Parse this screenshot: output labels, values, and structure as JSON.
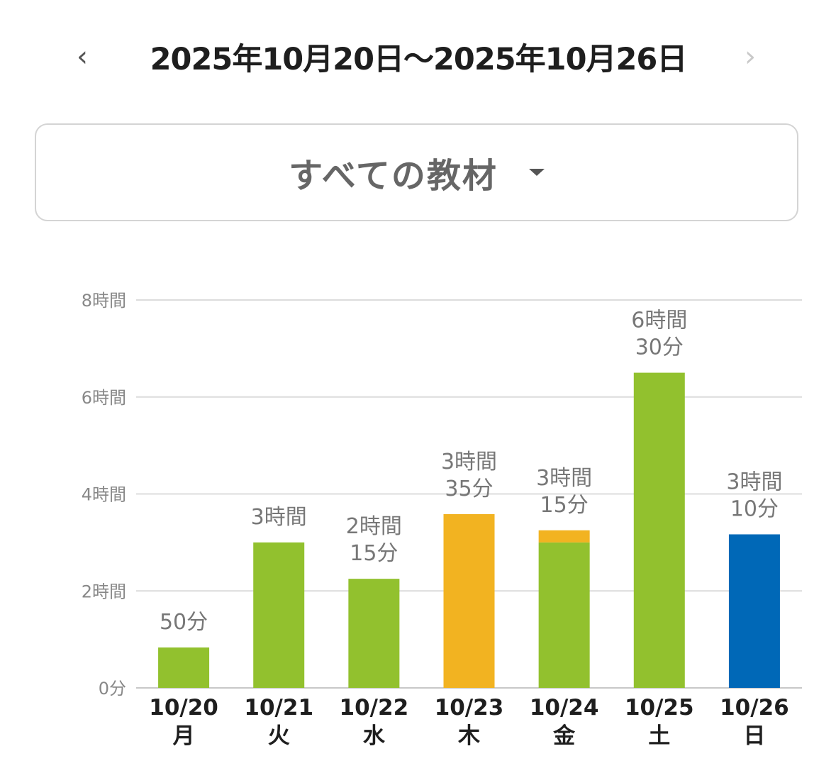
{
  "header": {
    "prev_icon": "‹",
    "next_icon": "›",
    "range": "2025年10月20日〜2025年10月26日"
  },
  "filter": {
    "selected": "すべての教材"
  },
  "chart_data": {
    "type": "bar",
    "stacked": true,
    "unit": "hours",
    "ylim": [
      0,
      8
    ],
    "grid": true,
    "y_ticks": [
      {
        "value": 0,
        "label": "0分"
      },
      {
        "value": 2,
        "label": "2時間"
      },
      {
        "value": 4,
        "label": "4時間"
      },
      {
        "value": 6,
        "label": "6時間"
      },
      {
        "value": 8,
        "label": "8時間"
      }
    ],
    "categories": [
      {
        "date": "10/20",
        "weekday": "月"
      },
      {
        "date": "10/21",
        "weekday": "火"
      },
      {
        "date": "10/22",
        "weekday": "水"
      },
      {
        "date": "10/23",
        "weekday": "木"
      },
      {
        "date": "10/24",
        "weekday": "金"
      },
      {
        "date": "10/25",
        "weekday": "土"
      },
      {
        "date": "10/26",
        "weekday": "日"
      }
    ],
    "series": [
      {
        "color": "#92c12e",
        "values": [
          0.8333,
          3,
          2.25,
          0,
          3,
          6.5,
          0
        ]
      },
      {
        "color": "#f2b321",
        "values": [
          0,
          0,
          0,
          3.5833,
          0.25,
          0,
          0
        ]
      },
      {
        "color": "#0068b7",
        "values": [
          0,
          0,
          0,
          0,
          0,
          0,
          3.1667
        ]
      }
    ],
    "totals": [
      [
        "50分"
      ],
      [
        "3時間"
      ],
      [
        "2時間",
        "15分"
      ],
      [
        "3時間",
        "35分"
      ],
      [
        "3時間",
        "15分"
      ],
      [
        "6時間",
        "30分"
      ],
      [
        "3時間",
        "10分"
      ]
    ]
  }
}
